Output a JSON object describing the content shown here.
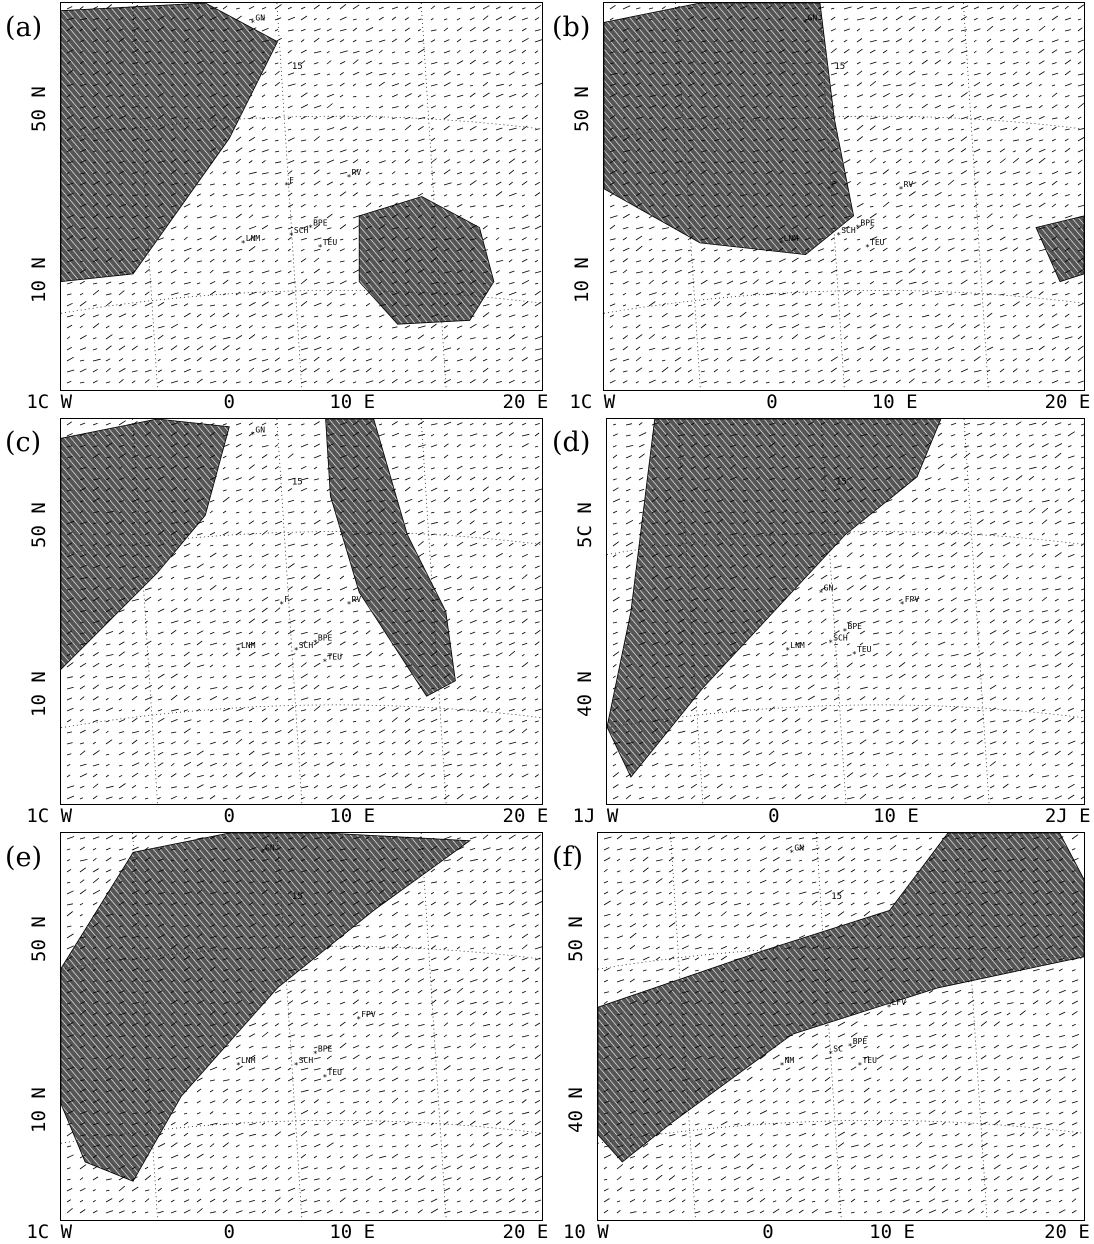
{
  "panels": [
    {
      "letter": "(a)",
      "lat_labels": [
        "50 N",
        "10 N"
      ],
      "lon_labels": [
        "1C W",
        "0",
        "10 E",
        "20 E"
      ],
      "stations": [
        "GN",
        "RV",
        "F",
        "BPE",
        "SCH",
        "TEU",
        "LNM"
      ],
      "contour_labels": [
        "15"
      ]
    },
    {
      "letter": "(b)",
      "lat_labels": [
        "50 N",
        "10 N"
      ],
      "lon_labels": [
        "1C W",
        "0",
        "10 E",
        "20 E"
      ],
      "stations": [
        "GN",
        "RV",
        "F",
        "BPE",
        "SCH",
        "TEU",
        "LNM"
      ],
      "contour_labels": [
        "15"
      ]
    },
    {
      "letter": "(c)",
      "lat_labels": [
        "50 N",
        "10 N"
      ],
      "lon_labels": [
        "1C W",
        "0",
        "10 E",
        "20 E"
      ],
      "stations": [
        "GN",
        "RV",
        "F",
        "BPE",
        "SCH",
        "TEU",
        "LNM"
      ],
      "contour_labels": [
        "15"
      ]
    },
    {
      "letter": "(d)",
      "lat_labels": [
        "5C N",
        "40 N"
      ],
      "lon_labels": [
        "1J W",
        "0",
        "10 E",
        "2J E"
      ],
      "stations": [
        "GN",
        "FPV",
        "BPE",
        "SCH",
        "TEU",
        "LNM"
      ],
      "contour_labels": [
        "15"
      ]
    },
    {
      "letter": "(e)",
      "lat_labels": [
        "50 N",
        "10 N"
      ],
      "lon_labels": [
        "1C W",
        "0",
        "10 E",
        "20 E"
      ],
      "stations": [
        "GN",
        "FPV",
        "BPE",
        "SCH",
        "TEU",
        "LNM"
      ],
      "contour_labels": [
        "15"
      ]
    },
    {
      "letter": "(f)",
      "lat_labels": [
        "50 N",
        "40 N"
      ],
      "lon_labels": [
        "10 W",
        "0",
        "10 E",
        "20 E"
      ],
      "stations": [
        "GN",
        "LFV",
        "BPE",
        "SC",
        "TEU",
        "NM"
      ],
      "contour_labels": [
        "15"
      ]
    }
  ],
  "colors": {
    "shade": "#555555",
    "line": "#000000",
    "background": "#ffffff"
  }
}
